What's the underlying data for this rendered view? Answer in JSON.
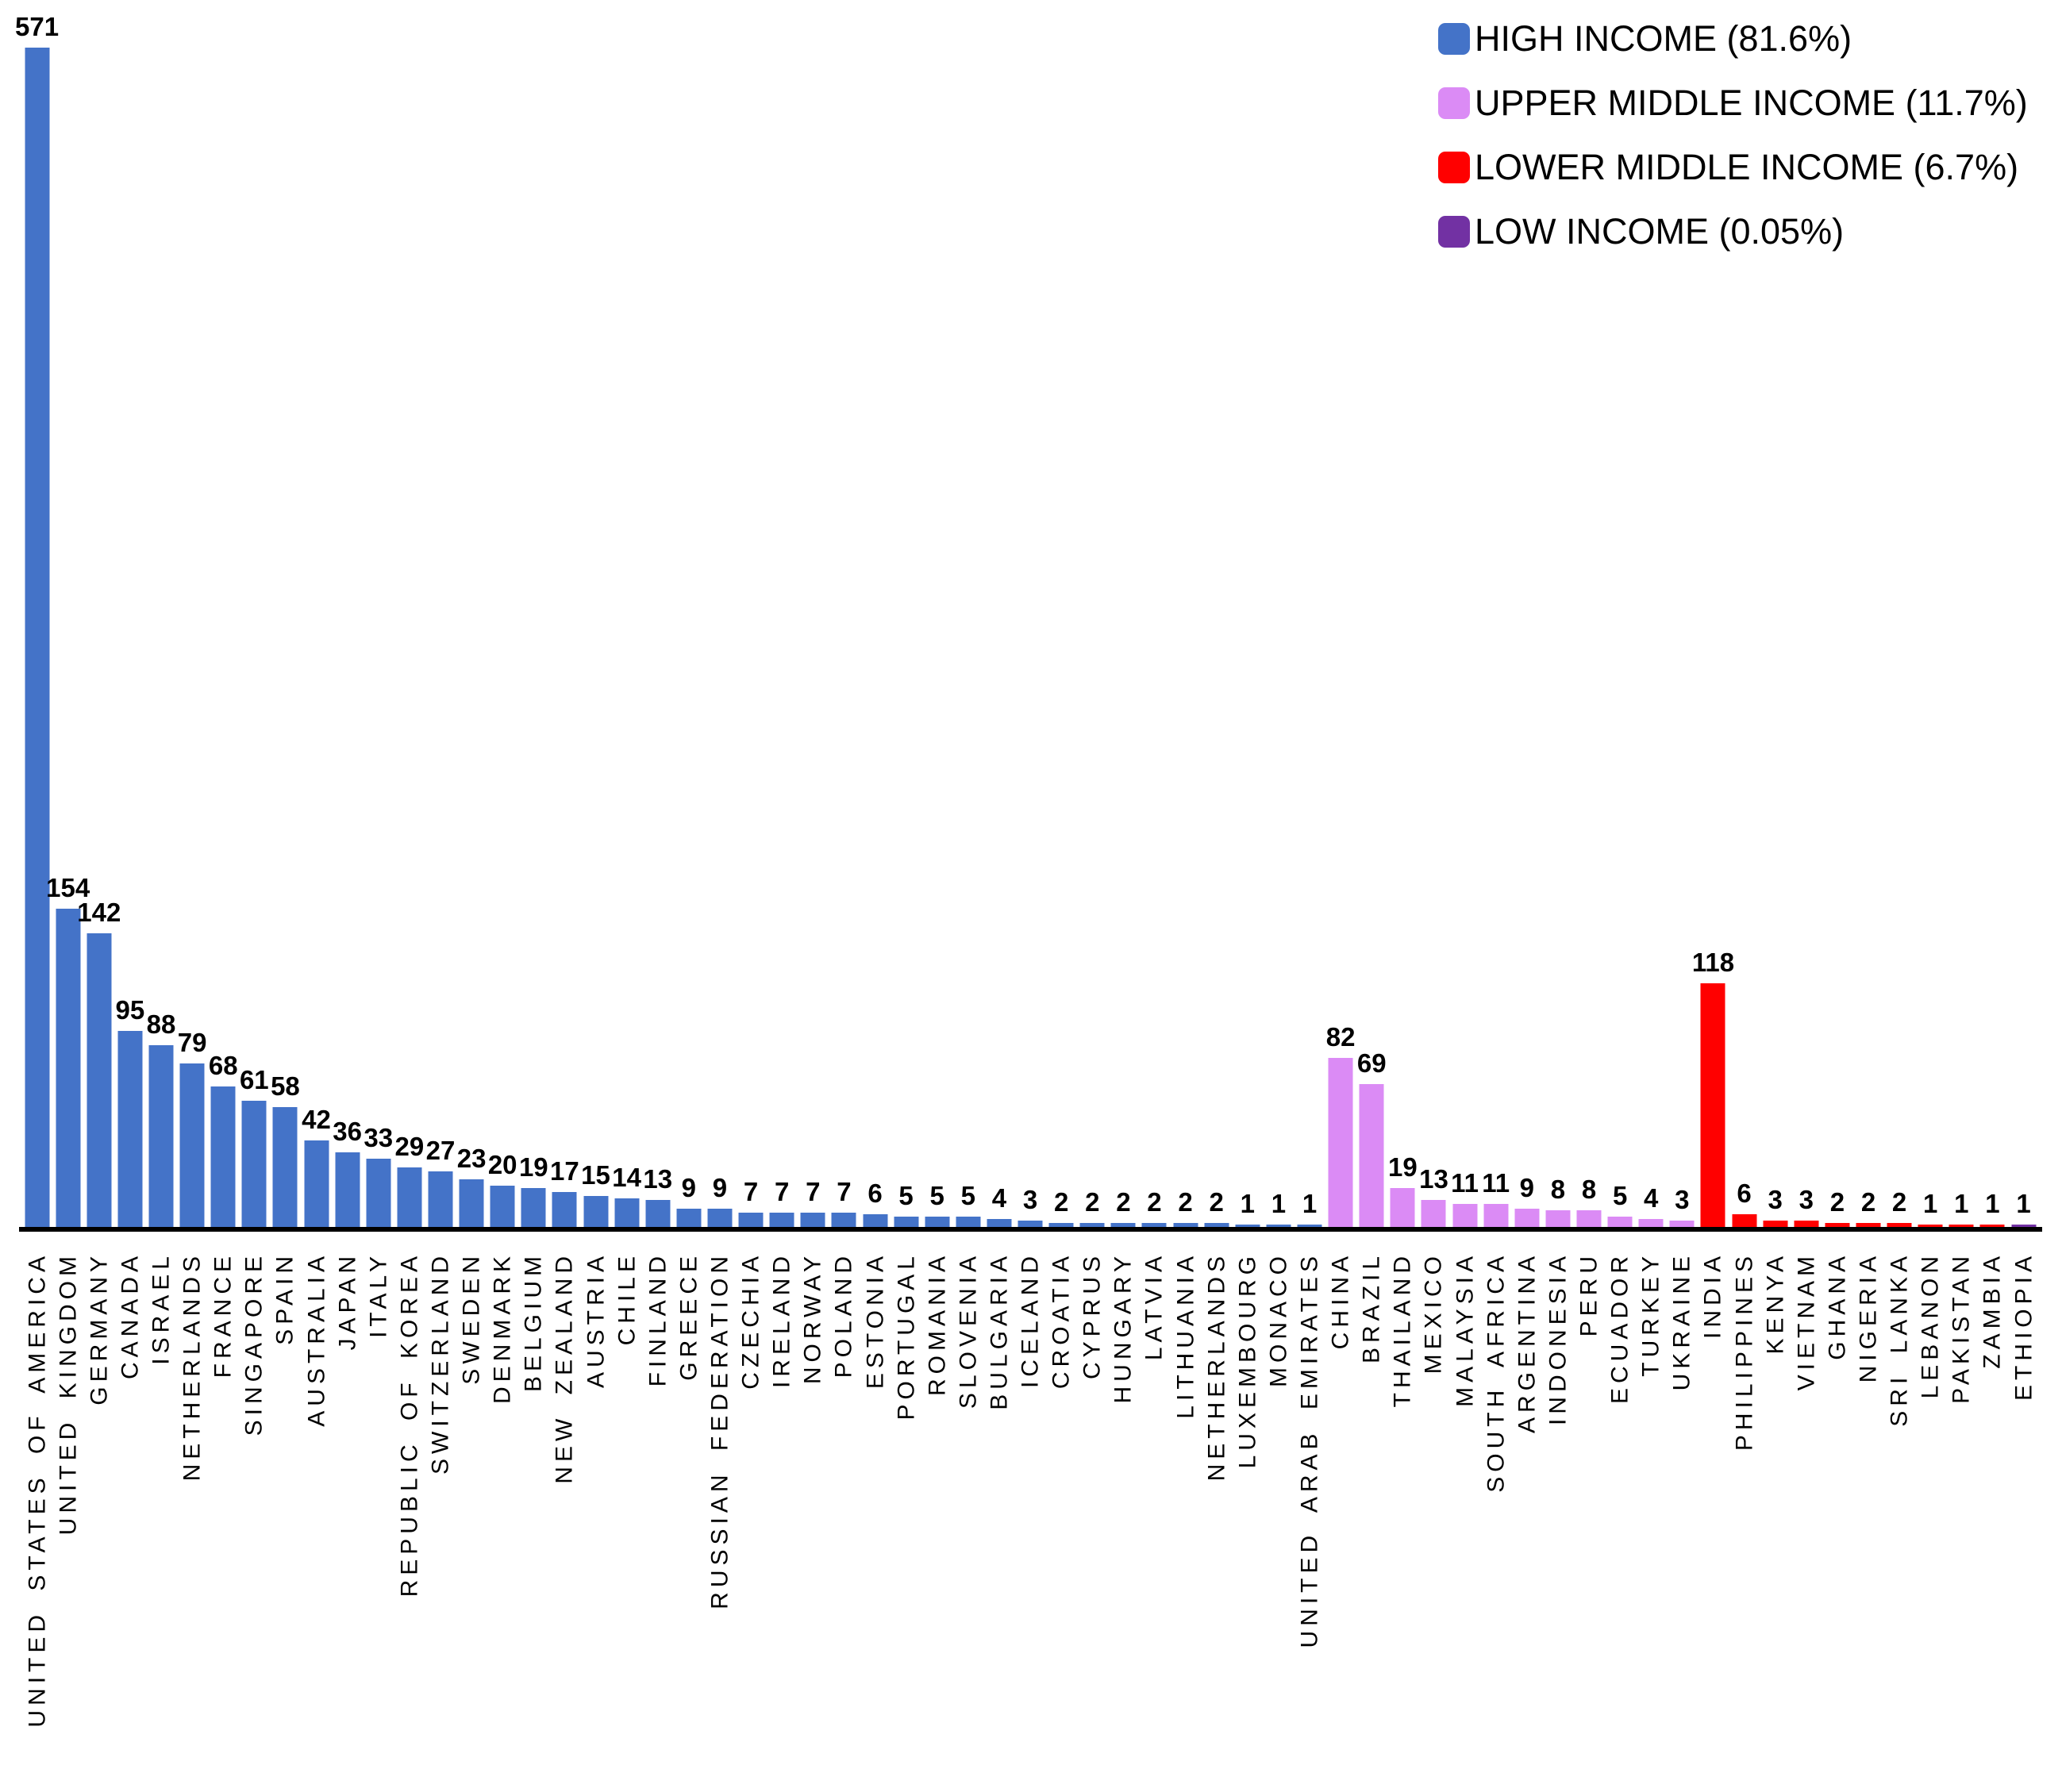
{
  "legend": {
    "items": [
      {
        "label": "HIGH INCOME (81.6%)",
        "color": "#4473C8",
        "group": "high"
      },
      {
        "label": "UPPER MIDDLE INCOME (11.7%)",
        "color": "#DB8BF5",
        "group": "upper_middle"
      },
      {
        "label": "LOWER MIDDLE INCOME (6.7%)",
        "color": "#FF0000",
        "group": "lower_middle"
      },
      {
        "label": "LOW INCOME (0.05%)",
        "color": "#7231A3",
        "group": "low"
      }
    ]
  },
  "chart_data": {
    "type": "bar",
    "title": "",
    "xlabel": "",
    "ylabel": "",
    "ylim": [
      0,
      571
    ],
    "grid": false,
    "legend_position": "top-right",
    "categories": [
      "UNITED STATES OF AMERICA",
      "UNITED KINGDOM",
      "GERMANY",
      "CANADA",
      "ISRAEL",
      "NETHERLANDS",
      "FRANCE",
      "SINGAPORE",
      "SPAIN",
      "AUSTRALIA",
      "JAPAN",
      "ITALY",
      "REPUBLIC OF KOREA",
      "SWITZERLAND",
      "SWEDEN",
      "DENMARK",
      "BELGIUM",
      "NEW ZEALAND",
      "AUSTRIA",
      "CHILE",
      "FINLAND",
      "GREECE",
      "RUSSIAN FEDERATION",
      "CZECHIA",
      "IRELAND",
      "NORWAY",
      "POLAND",
      "ESTONIA",
      "PORTUGAL",
      "ROMANIA",
      "SLOVENIA",
      "BULGARIA",
      "ICELAND",
      "CROATIA",
      "CYPRUS",
      "HUNGARY",
      "LATVIA",
      "LITHUANIA",
      "NETHERLANDS",
      "LUXEMBOURG",
      "MONACO",
      "UNITED ARAB EMIRATES",
      "CHINA",
      "BRAZIL",
      "THAILAND",
      "MEXICO",
      "MALAYSIA",
      "SOUTH AFRICA",
      "ARGENTINA",
      "INDONESIA",
      "PERU",
      "ECUADOR",
      "TURKEY",
      "UKRAINE",
      "INDIA",
      "PHILIPPINES",
      "KENYA",
      "VIETNAM",
      "GHANA",
      "NIGERIA",
      "SRI LANKA",
      "LEBANON",
      "PAKISTAN",
      "ZAMBIA",
      "ETHIOPIA"
    ],
    "values": [
      571,
      154,
      142,
      95,
      88,
      79,
      68,
      61,
      58,
      42,
      36,
      33,
      29,
      27,
      23,
      20,
      19,
      17,
      15,
      14,
      13,
      9,
      9,
      7,
      7,
      7,
      7,
      6,
      5,
      5,
      5,
      4,
      3,
      2,
      2,
      2,
      2,
      2,
      2,
      1,
      1,
      1,
      82,
      69,
      19,
      13,
      11,
      11,
      9,
      8,
      8,
      5,
      4,
      3,
      118,
      6,
      3,
      3,
      2,
      2,
      2,
      1,
      1,
      1,
      1
    ],
    "income_groups": [
      "high",
      "high",
      "high",
      "high",
      "high",
      "high",
      "high",
      "high",
      "high",
      "high",
      "high",
      "high",
      "high",
      "high",
      "high",
      "high",
      "high",
      "high",
      "high",
      "high",
      "high",
      "high",
      "high",
      "high",
      "high",
      "high",
      "high",
      "high",
      "high",
      "high",
      "high",
      "high",
      "high",
      "high",
      "high",
      "high",
      "high",
      "high",
      "high",
      "high",
      "high",
      "high",
      "upper_middle",
      "upper_middle",
      "upper_middle",
      "upper_middle",
      "upper_middle",
      "upper_middle",
      "upper_middle",
      "upper_middle",
      "upper_middle",
      "upper_middle",
      "upper_middle",
      "upper_middle",
      "lower_middle",
      "lower_middle",
      "lower_middle",
      "lower_middle",
      "lower_middle",
      "lower_middle",
      "lower_middle",
      "lower_middle",
      "lower_middle",
      "lower_middle",
      "low"
    ],
    "group_colors": {
      "high": "#4473C8",
      "upper_middle": "#DB8BF5",
      "lower_middle": "#FF0000",
      "low": "#7231A3"
    }
  }
}
